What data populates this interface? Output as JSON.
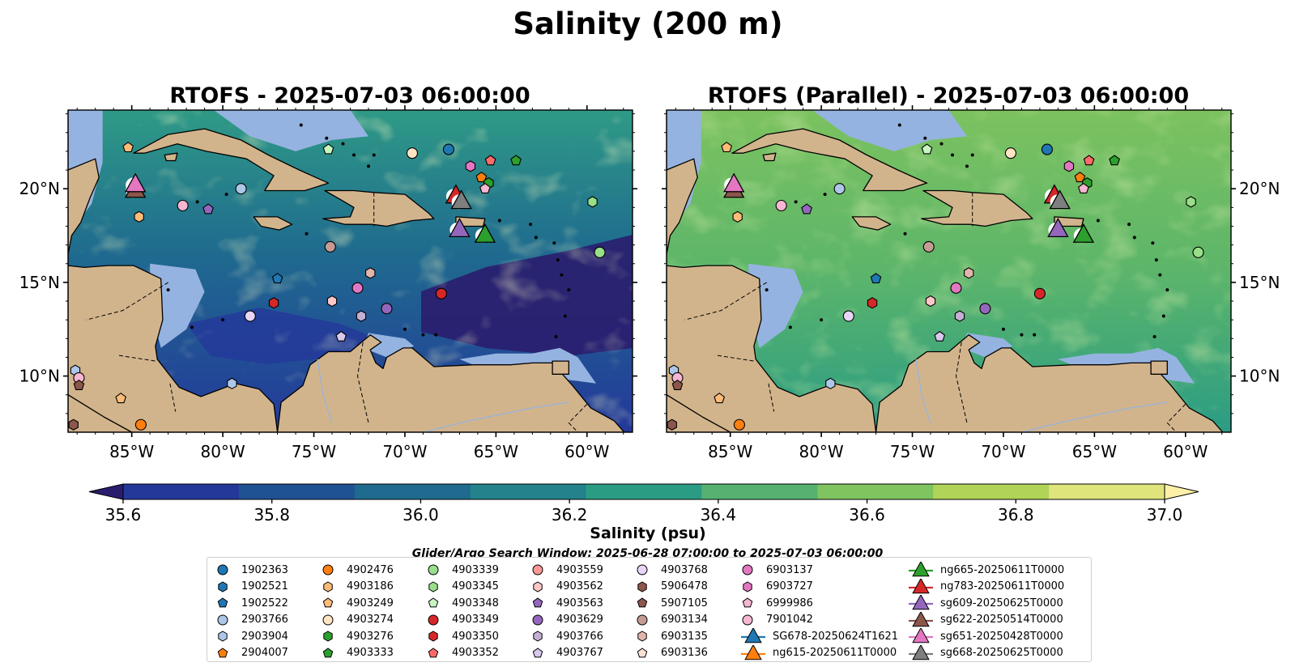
{
  "title": "Salinity (200 m)",
  "panels": [
    {
      "title": "RTOFS - 2025-07-03 06:00:00"
    },
    {
      "title": "RTOFS (Parallel) - 2025-07-03 06:00:00"
    }
  ],
  "map": {
    "lon_range": [
      -88.5,
      -57.5
    ],
    "lat_range": [
      7,
      24.2
    ],
    "lon_ticks": [
      "85°W",
      "80°W",
      "75°W",
      "70°W",
      "65°W",
      "60°W"
    ],
    "lat_ticks": [
      "20°N",
      "15°N",
      "10°N"
    ],
    "colors": {
      "land": "#d2b48c",
      "shallow": "#95b3e0",
      "coast": "#000000"
    }
  },
  "colorbar": {
    "label": "Salinity (psu)",
    "ticks": [
      "35.6",
      "35.8",
      "36.0",
      "36.2",
      "36.4",
      "36.6",
      "36.8",
      "37.0"
    ],
    "min": 35.6,
    "max": 37.0,
    "extend": "both",
    "colors": [
      "#2a1d6e",
      "#24389a",
      "#1f5292",
      "#1f6a8f",
      "#23828c",
      "#2b9c84",
      "#55b270",
      "#7fc45f",
      "#b1d357",
      "#dfe47b",
      "#fff0a8"
    ]
  },
  "search_window": "Glider/Argo Search Window: 2025-06-28 07:00:00 to 2025-07-03 06:00:00",
  "legend": [
    {
      "label": "1902363",
      "color": "#1f77b4",
      "marker": "circle"
    },
    {
      "label": "1902521",
      "color": "#1f77b4",
      "marker": "hexagon"
    },
    {
      "label": "1902522",
      "color": "#1f77b4",
      "marker": "pentagon"
    },
    {
      "label": "2903766",
      "color": "#aec7e8",
      "marker": "circle"
    },
    {
      "label": "2903904",
      "color": "#aec7e8",
      "marker": "hexagon"
    },
    {
      "label": "2904007",
      "color": "#ff7f0e",
      "marker": "pentagon"
    },
    {
      "label": "4902476",
      "color": "#ff7f0e",
      "marker": "circle"
    },
    {
      "label": "4903186",
      "color": "#ffbb78",
      "marker": "hexagon"
    },
    {
      "label": "4903249",
      "color": "#ffbb78",
      "marker": "pentagon"
    },
    {
      "label": "4903274",
      "color": "#ffe4c4",
      "marker": "circle"
    },
    {
      "label": "4903276",
      "color": "#2ca02c",
      "marker": "hexagon"
    },
    {
      "label": "4903333",
      "color": "#2ca02c",
      "marker": "pentagon"
    },
    {
      "label": "4903339",
      "color": "#98df8a",
      "marker": "circle"
    },
    {
      "label": "4903345",
      "color": "#98df8a",
      "marker": "hexagon"
    },
    {
      "label": "4903348",
      "color": "#c7f5c0",
      "marker": "pentagon"
    },
    {
      "label": "4903349",
      "color": "#d62728",
      "marker": "circle"
    },
    {
      "label": "4903350",
      "color": "#d62728",
      "marker": "hexagon"
    },
    {
      "label": "4903352",
      "color": "#ff6b6b",
      "marker": "pentagon"
    },
    {
      "label": "4903559",
      "color": "#ff9896",
      "marker": "circle"
    },
    {
      "label": "4903562",
      "color": "#ffc7c5",
      "marker": "hexagon"
    },
    {
      "label": "4903563",
      "color": "#9467bd",
      "marker": "pentagon"
    },
    {
      "label": "4903629",
      "color": "#9467bd",
      "marker": "circle"
    },
    {
      "label": "4903766",
      "color": "#c5b0d5",
      "marker": "hexagon"
    },
    {
      "label": "4903767",
      "color": "#d8c8ee",
      "marker": "pentagon"
    },
    {
      "label": "4903768",
      "color": "#e6d5f5",
      "marker": "circle"
    },
    {
      "label": "5906478",
      "color": "#8c564b",
      "marker": "hexagon"
    },
    {
      "label": "5907105",
      "color": "#8c564b",
      "marker": "pentagon"
    },
    {
      "label": "6903134",
      "color": "#c49c94",
      "marker": "circle"
    },
    {
      "label": "6903135",
      "color": "#e2b5ab",
      "marker": "hexagon"
    },
    {
      "label": "6903136",
      "color": "#fde0d5",
      "marker": "pentagon"
    },
    {
      "label": "6903137",
      "color": "#e377c2",
      "marker": "circle"
    },
    {
      "label": "6903727",
      "color": "#e377c2",
      "marker": "hexagon"
    },
    {
      "label": "6999986",
      "color": "#f7b6d2",
      "marker": "pentagon"
    },
    {
      "label": "7901042",
      "color": "#f7b6d2",
      "marker": "circle"
    },
    {
      "label": "SG678-20250624T1621",
      "color": "#1f77b4",
      "marker": "triangle"
    },
    {
      "label": "ng615-20250611T0000",
      "color": "#ff7f0e",
      "marker": "triangle"
    },
    {
      "label": "ng665-20250611T0000",
      "color": "#2ca02c",
      "marker": "triangle"
    },
    {
      "label": "ng783-20250611T0000",
      "color": "#d62728",
      "marker": "triangle"
    },
    {
      "label": "sg609-20250625T0000",
      "color": "#9467bd",
      "marker": "triangle"
    },
    {
      "label": "sg622-20250514T0000",
      "color": "#8c564b",
      "marker": "triangle"
    },
    {
      "label": "sg651-20250428T0000",
      "color": "#e377c2",
      "marker": "triangle"
    },
    {
      "label": "sg668-20250625T0000",
      "color": "#7f7f7f",
      "marker": "triangle"
    }
  ],
  "floats": [
    {
      "id": "4903249",
      "lon": -85.2,
      "lat": 22.2
    },
    {
      "id": "7901042",
      "lon": -82.2,
      "lat": 19.1
    },
    {
      "id": "4903563",
      "lon": -80.8,
      "lat": 18.9
    },
    {
      "id": "2903766",
      "lon": -79.0,
      "lat": 20.0
    },
    {
      "id": "4903186",
      "lon": -84.6,
      "lat": 18.5
    },
    {
      "id": "4903348",
      "lon": -74.2,
      "lat": 22.1
    },
    {
      "id": "4903274",
      "lon": -69.6,
      "lat": 21.9
    },
    {
      "id": "1902363",
      "lon": -67.6,
      "lat": 22.1
    },
    {
      "id": "6903727",
      "lon": -66.4,
      "lat": 21.2
    },
    {
      "id": "4903352",
      "lon": -65.3,
      "lat": 21.5
    },
    {
      "id": "4903333",
      "lon": -63.9,
      "lat": 21.5
    },
    {
      "id": "2904007",
      "lon": -65.8,
      "lat": 20.6
    },
    {
      "id": "4903276",
      "lon": -65.4,
      "lat": 20.3
    },
    {
      "id": "6999986",
      "lon": -65.6,
      "lat": 20.0
    },
    {
      "id": "4903345",
      "lon": -59.7,
      "lat": 19.3
    },
    {
      "id": "4903339",
      "lon": -59.3,
      "lat": 16.6
    },
    {
      "id": "6903134",
      "lon": -74.1,
      "lat": 16.9
    },
    {
      "id": "1902522",
      "lon": -77.0,
      "lat": 15.2
    },
    {
      "id": "6903135",
      "lon": -71.9,
      "lat": 15.5
    },
    {
      "id": "6903137",
      "lon": -72.6,
      "lat": 14.7
    },
    {
      "id": "4903349",
      "lon": -68.0,
      "lat": 14.4
    },
    {
      "id": "4903350",
      "lon": -77.2,
      "lat": 13.9
    },
    {
      "id": "4903562",
      "lon": -74.0,
      "lat": 14.0
    },
    {
      "id": "4903766",
      "lon": -72.4,
      "lat": 13.2
    },
    {
      "id": "4903629",
      "lon": -71.0,
      "lat": 13.6
    },
    {
      "id": "4903768",
      "lon": -78.5,
      "lat": 13.2
    },
    {
      "id": "4903767",
      "lon": -73.5,
      "lat": 12.1
    },
    {
      "id": "2903904",
      "lon": -79.5,
      "lat": 9.6
    },
    {
      "id": "2903904",
      "lon": -88.1,
      "lat": 10.3
    },
    {
      "id": "7901042",
      "lon": -87.9,
      "lat": 9.9
    },
    {
      "id": "5907105",
      "lon": -87.9,
      "lat": 9.5
    },
    {
      "id": "4903249",
      "lon": -85.6,
      "lat": 8.8
    },
    {
      "id": "4902476",
      "lon": -84.5,
      "lat": 7.4
    },
    {
      "id": "5906478",
      "lon": -88.2,
      "lat": 7.4
    }
  ],
  "gliders": [
    {
      "id": "sg622-20250514T0000",
      "lon": -84.8,
      "lat": 19.9
    },
    {
      "id": "sg651-20250428T0000",
      "lon": -84.8,
      "lat": 20.2
    },
    {
      "id": "ng783-20250611T0000",
      "lon": -67.2,
      "lat": 19.6
    },
    {
      "id": "sg668-20250625T0000",
      "lon": -66.9,
      "lat": 19.3
    },
    {
      "id": "sg609-20250625T0000",
      "lon": -67.0,
      "lat": 17.8
    },
    {
      "id": "ng665-20250611T0000",
      "lon": -65.6,
      "lat": 17.5
    }
  ]
}
